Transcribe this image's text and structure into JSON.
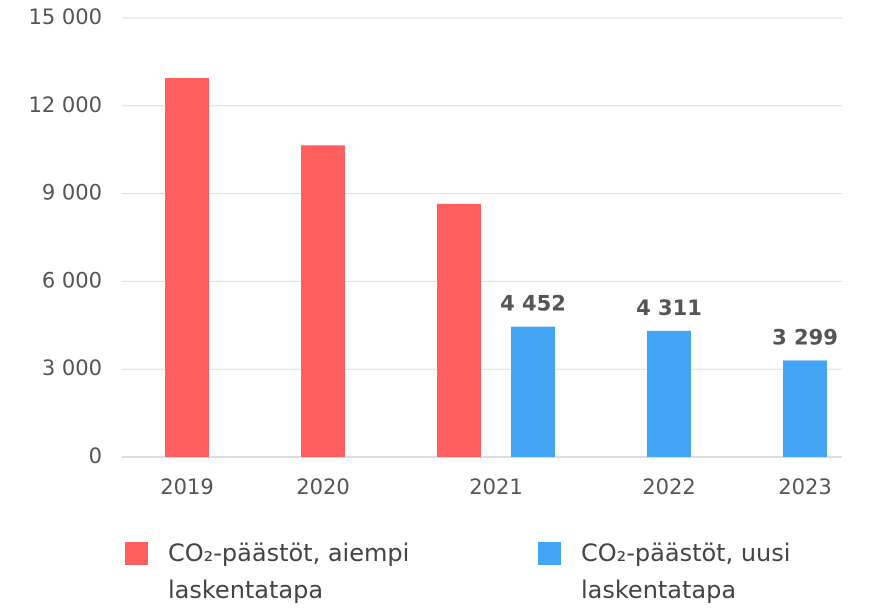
{
  "chart_data": {
    "type": "bar",
    "categories": [
      "2019",
      "2020",
      "2021",
      "2022",
      "2023"
    ],
    "series": [
      {
        "name": "CO₂-päästöt, aiempi laskentatapa",
        "color": "#ff5f5f",
        "values": [
          12950,
          10650,
          8650,
          null,
          null
        ]
      },
      {
        "name": "CO₂-päästöt, uusi laskentatapa",
        "color": "#42a5f5",
        "values": [
          null,
          null,
          4452,
          4311,
          3299
        ],
        "value_labels": [
          null,
          null,
          "4 452",
          "4 311",
          "3 299"
        ]
      }
    ],
    "ylim": [
      0,
      15000
    ],
    "yticks": [
      0,
      {
        "value": 3000,
        "label": "3 000"
      },
      {
        "value": 6000,
        "label": "6 000"
      },
      {
        "value": 9000,
        "label": "9 000"
      },
      {
        "value": 12000,
        "label": "12 000"
      },
      {
        "value": 15000,
        "label": "15 000"
      }
    ],
    "grid": true,
    "legend": "bottom"
  }
}
